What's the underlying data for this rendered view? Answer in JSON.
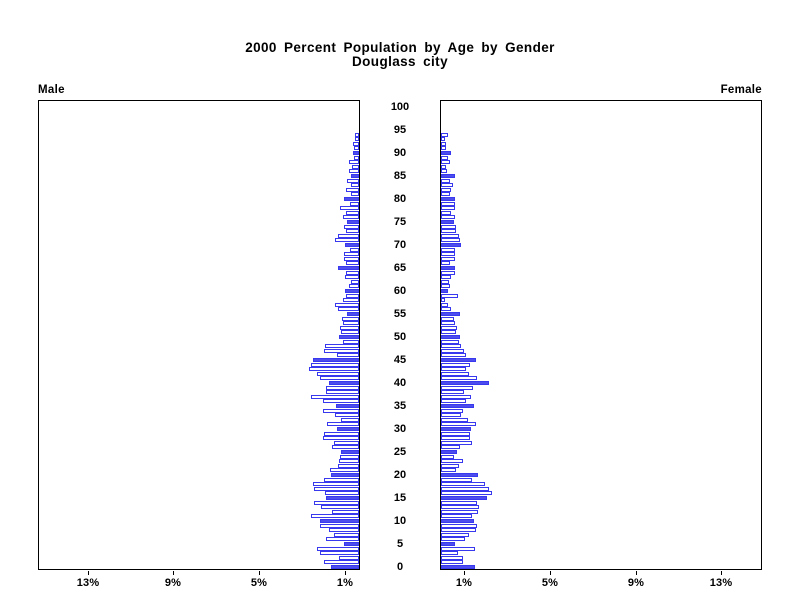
{
  "title": {
    "line1": "2000 Percent Population by Age by Gender",
    "line2": "Douglass city"
  },
  "panels": {
    "left_label": "Male",
    "right_label": "Female"
  },
  "colors": {
    "bar_outline": "#3838ee",
    "bar_fill": "#4d4dee",
    "frame": "#000000",
    "background": "#ffffff"
  },
  "chart_data": {
    "type": "bar",
    "subtype": "population-pyramid",
    "title": "2000 Percent Population by Age by Gender",
    "subtitle": "Douglass city",
    "units": "percent of population",
    "age_min": 0,
    "age_max": 100,
    "age_axis_labels": [
      "0",
      "5",
      "10",
      "15",
      "20",
      "25",
      "30",
      "35",
      "40",
      "45",
      "50",
      "55",
      "60",
      "65",
      "70",
      "75",
      "80",
      "85",
      "90",
      "95",
      "100"
    ],
    "x_axis": {
      "male_tick_labels": [
        "13%",
        "9%",
        "5%",
        "1%"
      ],
      "female_tick_labels": [
        "1%",
        "5%",
        "9%",
        "13%"
      ],
      "tick_values_percent": [
        1,
        5,
        9,
        13
      ],
      "max_percent_shown": 15
    },
    "highlight_rule": "bars for ages divisible by 5 are solid blue; all other ages are white with blue outline",
    "series": [
      {
        "name": "Male",
        "side": "left",
        "values_percent_by_age": [
          1.15,
          1.5,
          0.8,
          1.7,
          1.8,
          0.55,
          1.4,
          1.05,
          1.25,
          1.7,
          1.7,
          2.1,
          1.1,
          1.65,
          1.95,
          1.4,
          1.45,
          1.95,
          2.0,
          1.5,
          1.15,
          1.2,
          0.85,
          0.8,
          0.75,
          0.7,
          1.1,
          1.05,
          1.55,
          1.5,
          0.9,
          1.35,
          0.7,
          1.0,
          1.55,
          0.95,
          1.55,
          2.1,
          1.4,
          1.4,
          1.25,
          1.7,
          1.8,
          2.2,
          2.1,
          2.0,
          0.9,
          1.5,
          1.45,
          0.6,
          0.8,
          0.7,
          0.75,
          0.6,
          0.65,
          0.4,
          0.85,
          1.0,
          0.6,
          0.45,
          0.5,
          0.35,
          0.25,
          0.5,
          0.45,
          0.85,
          0.45,
          0.55,
          0.55,
          0.3,
          0.5,
          1.0,
          0.85,
          0.45,
          0.55,
          0.4,
          0.6,
          0.45,
          0.75,
          0.3,
          0.55,
          0.25,
          0.45,
          0.25,
          0.4,
          0.25,
          0.35,
          0.2,
          0.35,
          0.1,
          0.15,
          0.1,
          0.15,
          0.05,
          0.05,
          0,
          0,
          0,
          0,
          0,
          0
        ]
      },
      {
        "name": "Female",
        "side": "right",
        "values_percent_by_age": [
          1.45,
          0.9,
          0.9,
          0.65,
          1.45,
          0.5,
          1.0,
          1.15,
          1.5,
          1.55,
          1.4,
          1.3,
          1.6,
          1.65,
          1.55,
          2.0,
          2.25,
          2.1,
          1.9,
          1.3,
          1.6,
          0.55,
          0.7,
          0.9,
          0.45,
          0.6,
          0.75,
          1.3,
          1.2,
          1.2,
          1.25,
          1.5,
          1.1,
          0.8,
          0.9,
          1.4,
          1.05,
          1.25,
          0.95,
          1.35,
          2.1,
          1.55,
          1.15,
          1.05,
          1.2,
          1.5,
          1.05,
          0.95,
          0.8,
          0.7,
          0.75,
          0.55,
          0.6,
          0.5,
          0.45,
          0.75,
          0.35,
          0.2,
          0.05,
          0.65,
          0.2,
          0.3,
          0.25,
          0.35,
          0.5,
          0.5,
          0.3,
          0.5,
          0.5,
          0.5,
          0.8,
          0.75,
          0.7,
          0.55,
          0.55,
          0.45,
          0.5,
          0.35,
          0.5,
          0.5,
          0.5,
          0.3,
          0.35,
          0.4,
          0.3,
          0.5,
          0.15,
          0.1,
          0.3,
          0.2,
          0.35,
          0.1,
          0.1,
          0.05,
          0.2,
          0,
          0,
          0,
          0,
          0,
          0
        ]
      }
    ]
  }
}
